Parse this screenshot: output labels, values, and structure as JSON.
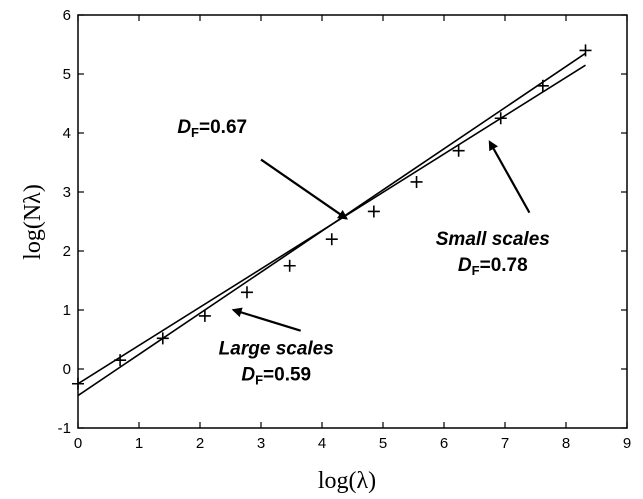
{
  "chart_data": {
    "type": "scatter",
    "xlabel": "log(λ)",
    "ylabel": "log(Nλ)",
    "xlim": [
      0,
      9
    ],
    "ylim": [
      -1,
      6
    ],
    "xticks": [
      0,
      1,
      2,
      3,
      4,
      5,
      6,
      7,
      8,
      9
    ],
    "yticks": [
      -1,
      0,
      1,
      2,
      3,
      4,
      5,
      6
    ],
    "grid": false,
    "data_points": {
      "marker": "+",
      "x": [
        0.0,
        0.69,
        1.39,
        2.08,
        2.77,
        3.47,
        4.16,
        4.85,
        5.55,
        6.24,
        6.93,
        7.62,
        8.32
      ],
      "y": [
        -0.25,
        0.15,
        0.52,
        0.9,
        1.3,
        1.75,
        2.2,
        2.67,
        3.17,
        3.7,
        4.25,
        4.8,
        5.4
      ]
    },
    "fit_lines": [
      {
        "x": [
          0,
          8.32
        ],
        "y": [
          -0.25,
          5.15
        ]
      },
      {
        "x": [
          0,
          8.32
        ],
        "y": [
          -0.45,
          5.35
        ]
      }
    ],
    "annotations": [
      {
        "lines": [
          "",
          "D",
          "F",
          "=0.67"
        ],
        "text_at": [
          2.2,
          4.0
        ],
        "arrow_from": [
          3.0,
          3.55
        ],
        "arrow_to": [
          4.4,
          2.55
        ]
      },
      {
        "lines": [
          "Small scales",
          "D",
          "F",
          "=0.78"
        ],
        "text_at": [
          6.8,
          2.1
        ],
        "arrow_from": [
          7.4,
          2.65
        ],
        "arrow_to": [
          6.75,
          3.85
        ]
      },
      {
        "lines": [
          "Large scales",
          "D",
          "F",
          "=0.59"
        ],
        "text_at": [
          3.25,
          0.25
        ],
        "arrow_from": [
          3.65,
          0.65
        ],
        "arrow_to": [
          2.55,
          1.0
        ]
      }
    ]
  }
}
